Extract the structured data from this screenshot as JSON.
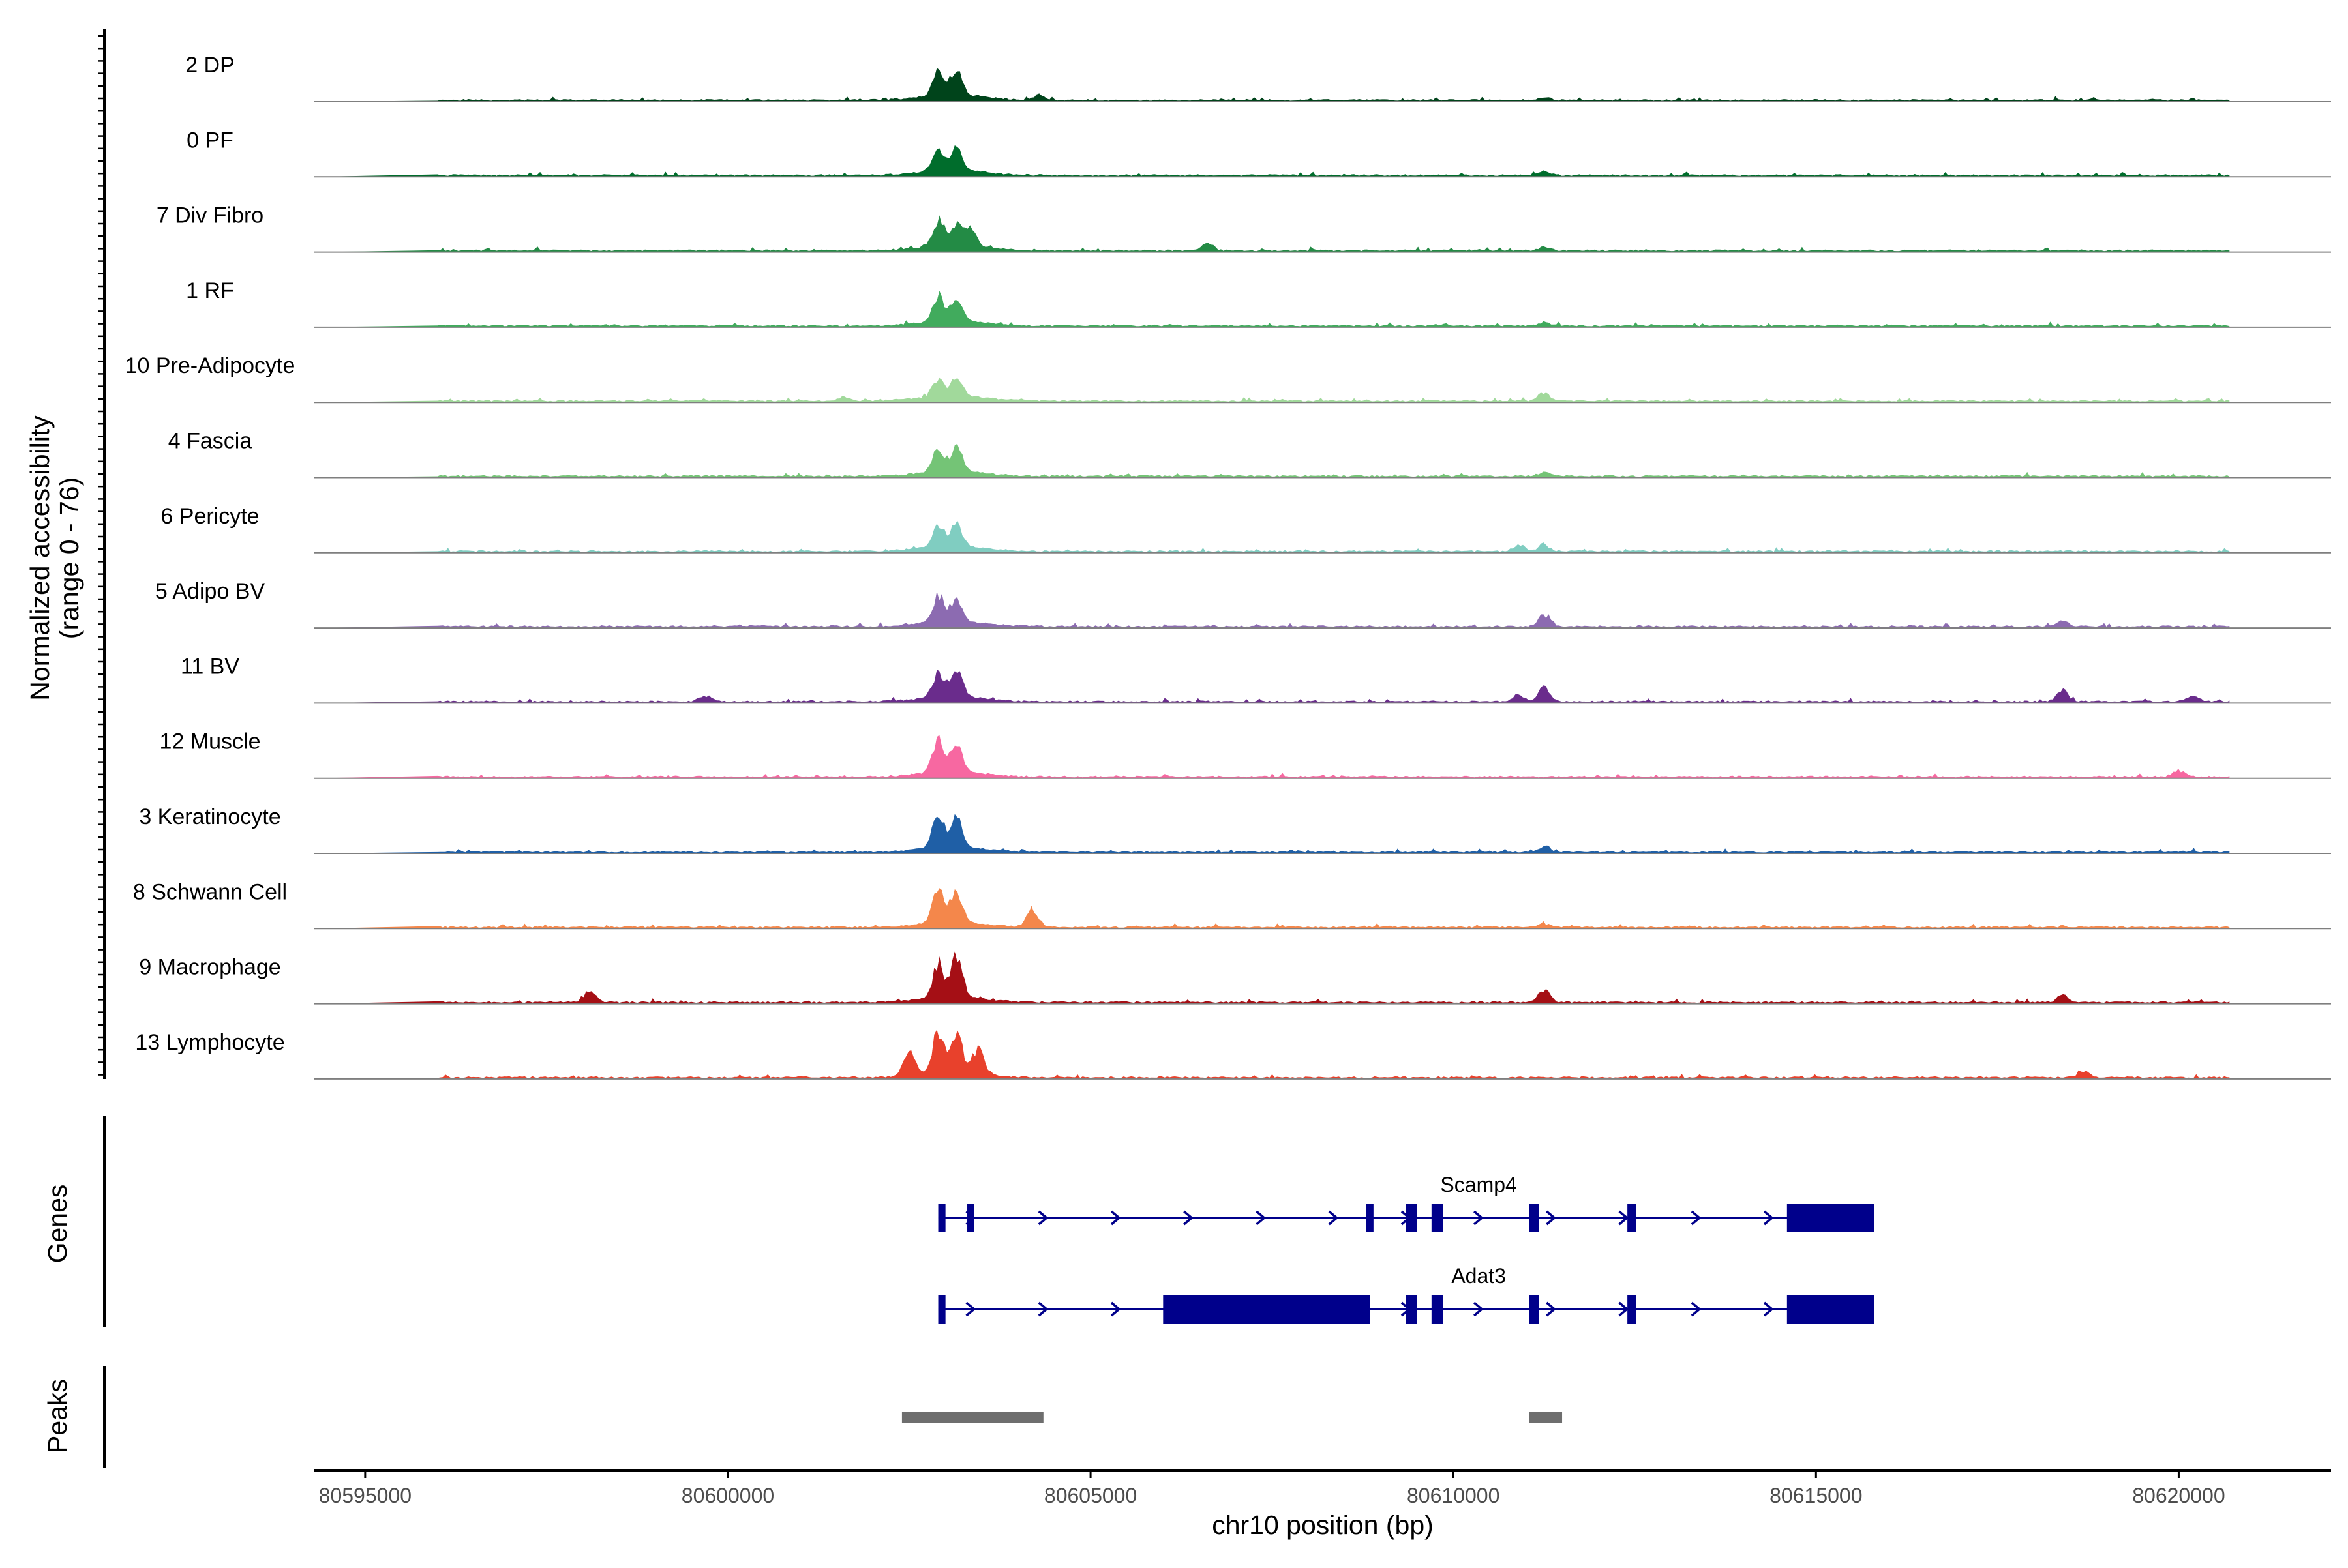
{
  "chart_data": {
    "type": "area",
    "title": "",
    "ylabel": "Normalized accessibility",
    "ylabel_range": "(range 0 - 76)",
    "ylim": [
      0,
      76
    ],
    "xlabel": "chr10 position (bp)",
    "xlim": [
      80594300,
      80622100
    ],
    "xticks": [
      80595000,
      80600000,
      80605000,
      80610000,
      80615000,
      80620000
    ],
    "track_labels": {
      "genes": "Genes",
      "peaks": "Peaks"
    },
    "series": [
      {
        "name": "2 DP",
        "color": "#00441b",
        "peaks": [
          [
            80602900,
            0.35
          ],
          [
            80603150,
            0.38
          ],
          [
            80604300,
            0.07
          ],
          [
            80611250,
            0.05
          ]
        ]
      },
      {
        "name": "0 PF",
        "color": "#006d2c",
        "peaks": [
          [
            80602900,
            0.33
          ],
          [
            80603150,
            0.33
          ],
          [
            80611250,
            0.05
          ]
        ]
      },
      {
        "name": "7 Div Fibro",
        "color": "#238b45",
        "peaks": [
          [
            80602900,
            0.4
          ],
          [
            80603150,
            0.32
          ],
          [
            80603350,
            0.25
          ],
          [
            80606600,
            0.12
          ],
          [
            80611250,
            0.05
          ]
        ]
      },
      {
        "name": "1 RF",
        "color": "#41ab5d",
        "peaks": [
          [
            80602900,
            0.38
          ],
          [
            80603150,
            0.34
          ],
          [
            80611250,
            0.05
          ]
        ]
      },
      {
        "name": "10 Pre-Adipocyte",
        "color": "#a1d99b",
        "peaks": [
          [
            80602900,
            0.28
          ],
          [
            80603150,
            0.3
          ],
          [
            80611250,
            0.12
          ],
          [
            80601600,
            0.06
          ]
        ]
      },
      {
        "name": "4 Fascia",
        "color": "#74c476",
        "peaks": [
          [
            80602900,
            0.32
          ],
          [
            80603150,
            0.36
          ],
          [
            80611250,
            0.07
          ]
        ]
      },
      {
        "name": "6 Pericyte",
        "color": "#80cdc1",
        "peaks": [
          [
            80602900,
            0.33
          ],
          [
            80603150,
            0.34
          ],
          [
            80610900,
            0.09
          ],
          [
            80611250,
            0.1
          ]
        ]
      },
      {
        "name": "5 Adipo BV",
        "color": "#8c6bb1",
        "peaks": [
          [
            80602900,
            0.4
          ],
          [
            80603150,
            0.33
          ],
          [
            80611250,
            0.17
          ],
          [
            80618400,
            0.08
          ]
        ]
      },
      {
        "name": "11 BV",
        "color": "#6a2c8c",
        "peaks": [
          [
            80602900,
            0.35
          ],
          [
            80603150,
            0.45
          ],
          [
            80611250,
            0.2
          ],
          [
            80610900,
            0.1
          ],
          [
            80618400,
            0.18
          ],
          [
            80620200,
            0.1
          ],
          [
            80599700,
            0.1
          ]
        ]
      },
      {
        "name": "12 Muscle",
        "color": "#f768a1",
        "peaks": [
          [
            80602900,
            0.55
          ],
          [
            80603150,
            0.45
          ],
          [
            80620000,
            0.1
          ]
        ]
      },
      {
        "name": "3 Keratinocyte",
        "color": "#1f5fa6",
        "peaks": [
          [
            80602900,
            0.48
          ],
          [
            80603150,
            0.45
          ],
          [
            80611250,
            0.08
          ]
        ]
      },
      {
        "name": "8 Schwann Cell",
        "color": "#f4874b",
        "peaks": [
          [
            80602900,
            0.55
          ],
          [
            80603150,
            0.45
          ],
          [
            80604200,
            0.28
          ],
          [
            80611250,
            0.05
          ]
        ]
      },
      {
        "name": "9 Macrophage",
        "color": "#a50f15",
        "peaks": [
          [
            80602900,
            0.5
          ],
          [
            80603150,
            0.62
          ],
          [
            80598100,
            0.18
          ],
          [
            80611250,
            0.18
          ],
          [
            80618400,
            0.1
          ]
        ]
      },
      {
        "name": "13 Lymphocyte",
        "color": "#e8412c",
        "peaks": [
          [
            80602500,
            0.35
          ],
          [
            80602900,
            0.62
          ],
          [
            80603150,
            0.65
          ],
          [
            80603450,
            0.4
          ],
          [
            80618700,
            0.1
          ]
        ]
      }
    ],
    "genes": [
      {
        "name": "Scamp4",
        "start": 80602900,
        "end": 80615800,
        "exons": [
          [
            80602900,
            80603000,
            "thin"
          ],
          [
            80603300,
            80603380,
            "thin"
          ],
          [
            80608800,
            80608900,
            "thin"
          ],
          [
            80609350,
            80609500,
            "thin"
          ],
          [
            80609700,
            80609860,
            "thin"
          ],
          [
            80611050,
            80611180,
            "thin"
          ],
          [
            80612400,
            80612520,
            "thin"
          ],
          [
            80614600,
            80615800,
            "thick"
          ]
        ]
      },
      {
        "name": "Adat3",
        "start": 80602900,
        "end": 80615800,
        "exons": [
          [
            80602900,
            80603000,
            "thin"
          ],
          [
            80606000,
            80608850,
            "thick"
          ],
          [
            80609350,
            80609500,
            "thin"
          ],
          [
            80609700,
            80609860,
            "thin"
          ],
          [
            80611050,
            80611180,
            "thin"
          ],
          [
            80612400,
            80612520,
            "thin"
          ],
          [
            80614600,
            80615800,
            "thick"
          ]
        ]
      }
    ],
    "peaks_track": [
      [
        80602400,
        80604350
      ],
      [
        80611050,
        80611500
      ]
    ]
  }
}
